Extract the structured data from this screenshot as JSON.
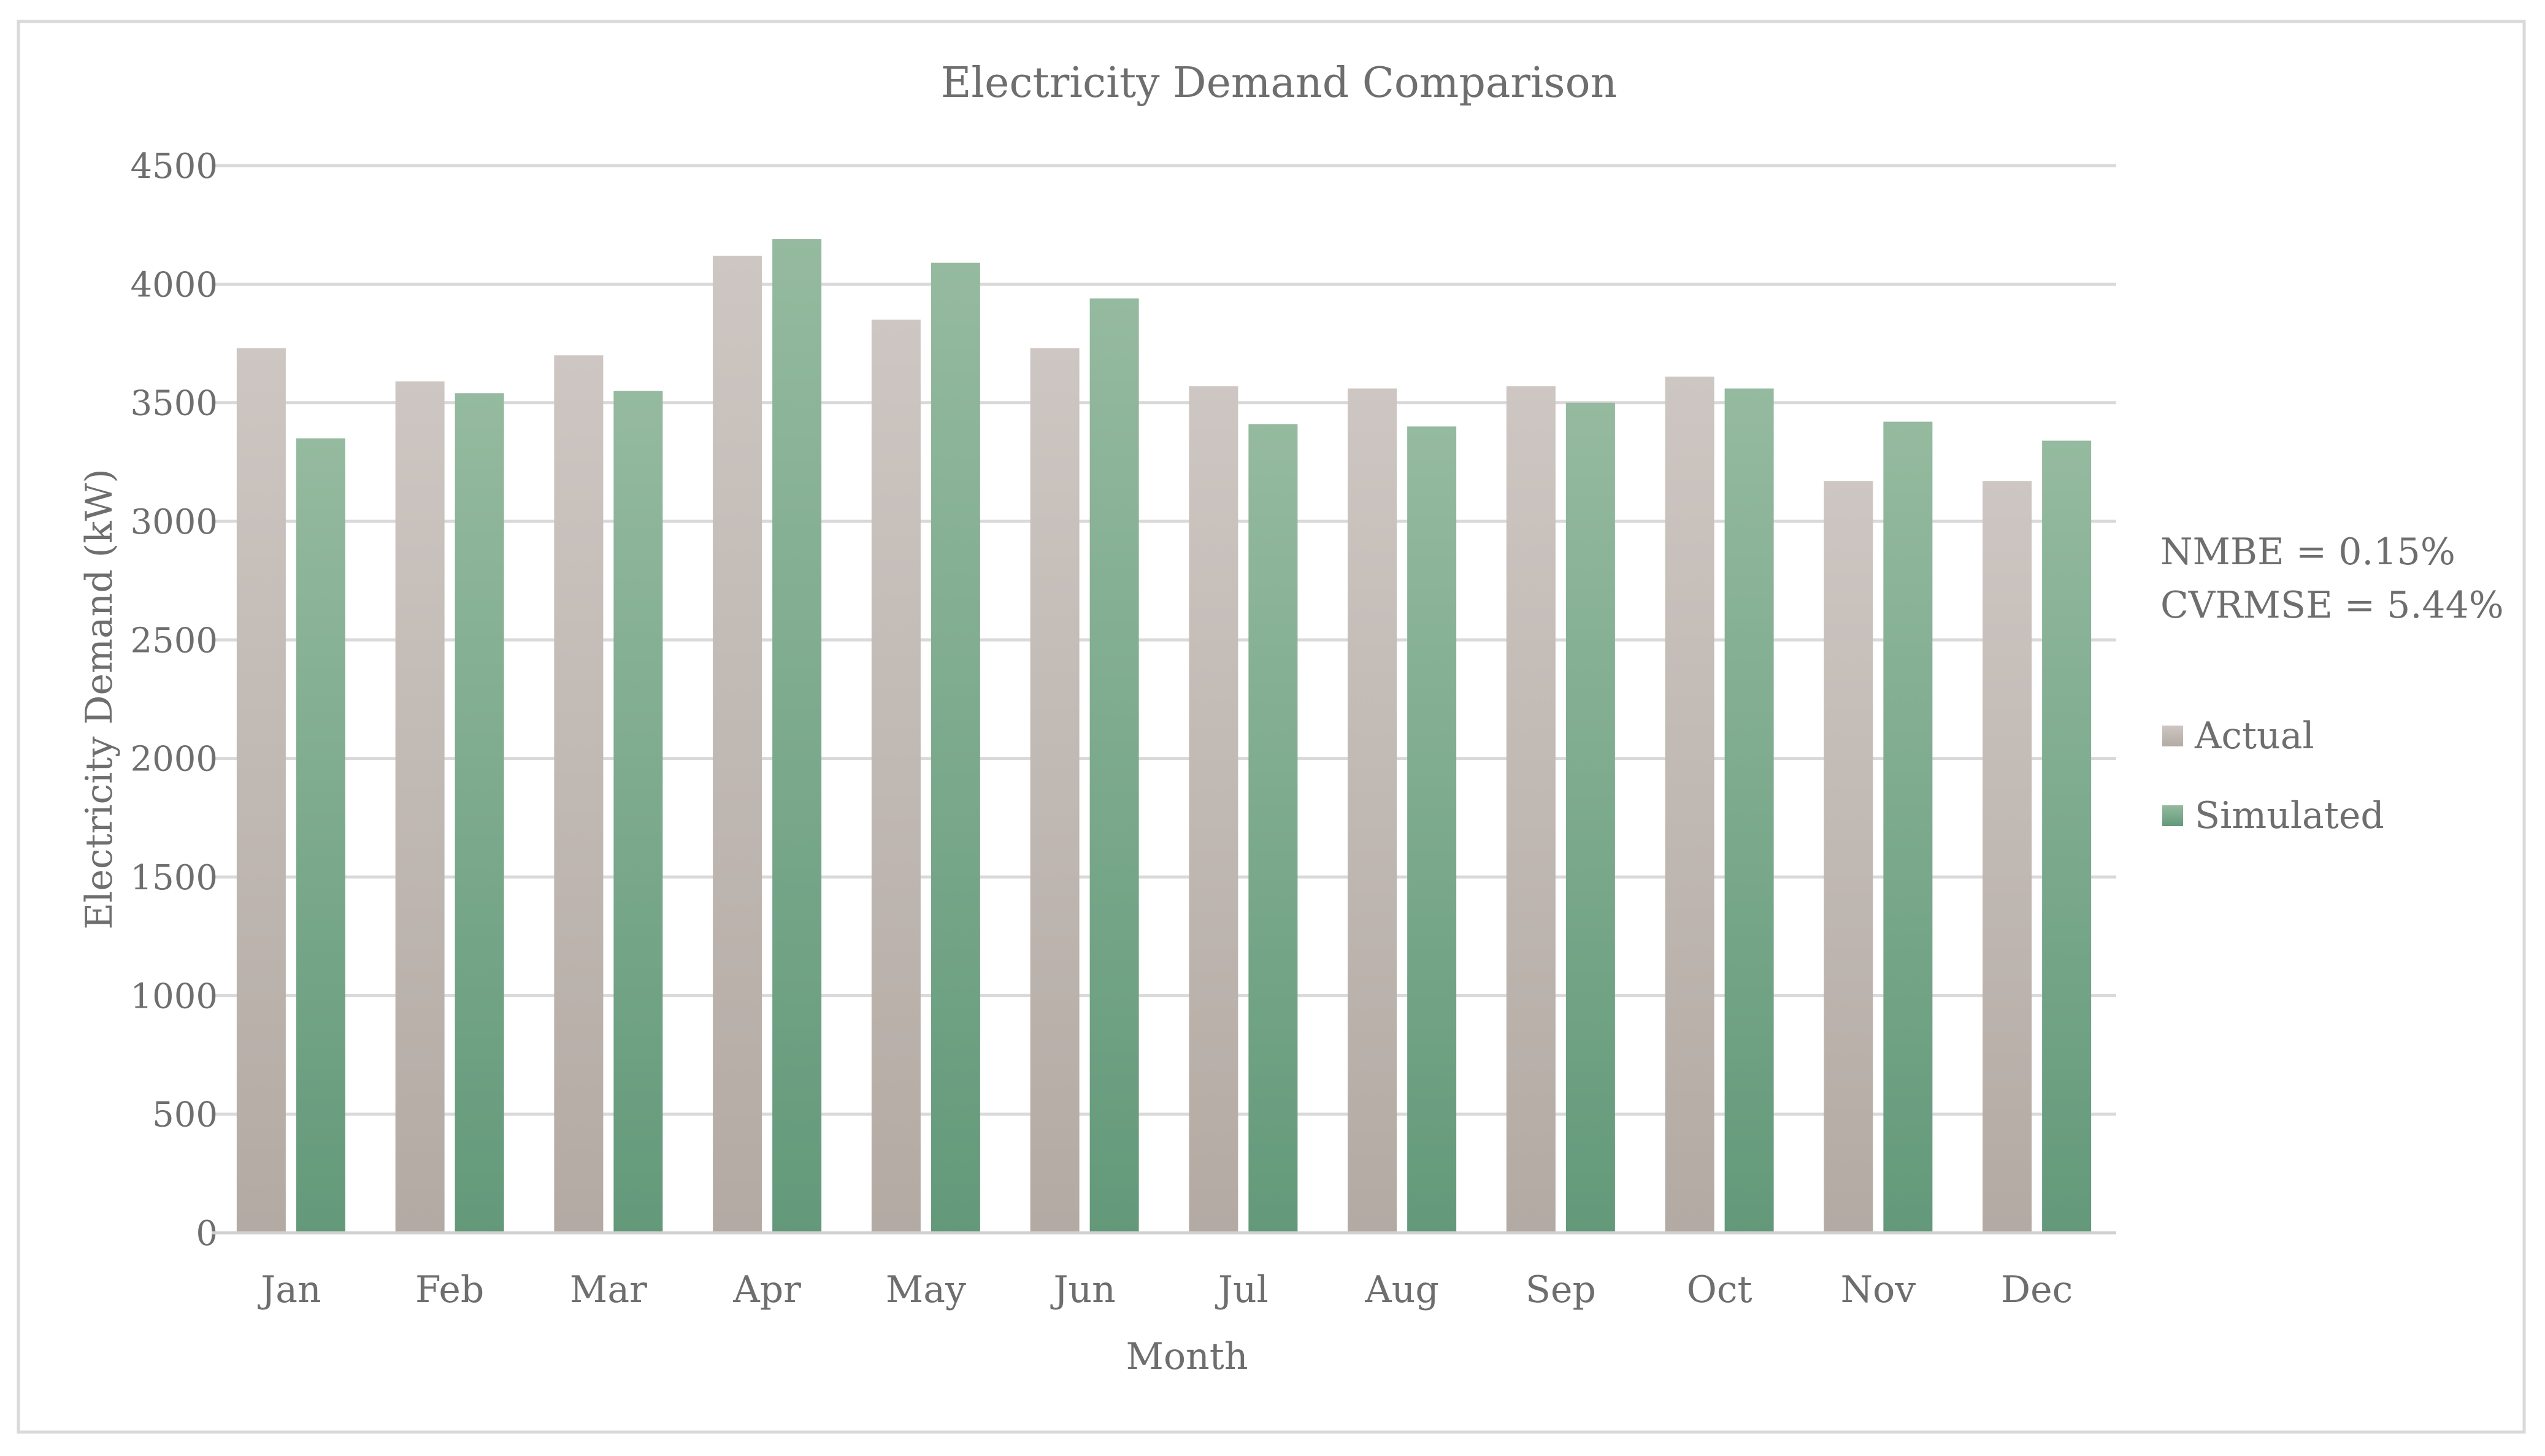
{
  "chart_data": {
    "type": "bar",
    "title": "Electricity Demand Comparison",
    "xlabel": "Month",
    "ylabel": "Electricity Demand (kW)",
    "ylim": [
      0,
      4500
    ],
    "yticks": [
      "0",
      "500",
      "1000",
      "1500",
      "2000",
      "2500",
      "3000",
      "3500",
      "4000",
      "4500"
    ],
    "grid": true,
    "categories": [
      "Jan",
      "Feb",
      "Mar",
      "Apr",
      "May",
      "Jun",
      "Jul",
      "Aug",
      "Sep",
      "Oct",
      "Nov",
      "Dec"
    ],
    "series": [
      {
        "name": "Actual",
        "color": "#b9b1ab",
        "values": [
          3730,
          3590,
          3700,
          4120,
          3850,
          3730,
          3570,
          3560,
          3570,
          3610,
          3170,
          3170
        ]
      },
      {
        "name": "Simulated",
        "color": "#6a9f7c",
        "values": [
          3350,
          3540,
          3550,
          4190,
          4090,
          3940,
          3410,
          3400,
          3500,
          3560,
          3420,
          3340
        ]
      }
    ],
    "annotations": [
      "NMBE = 0.15%",
      "CVRMSE = 5.44%"
    ],
    "legend_position": "right"
  }
}
